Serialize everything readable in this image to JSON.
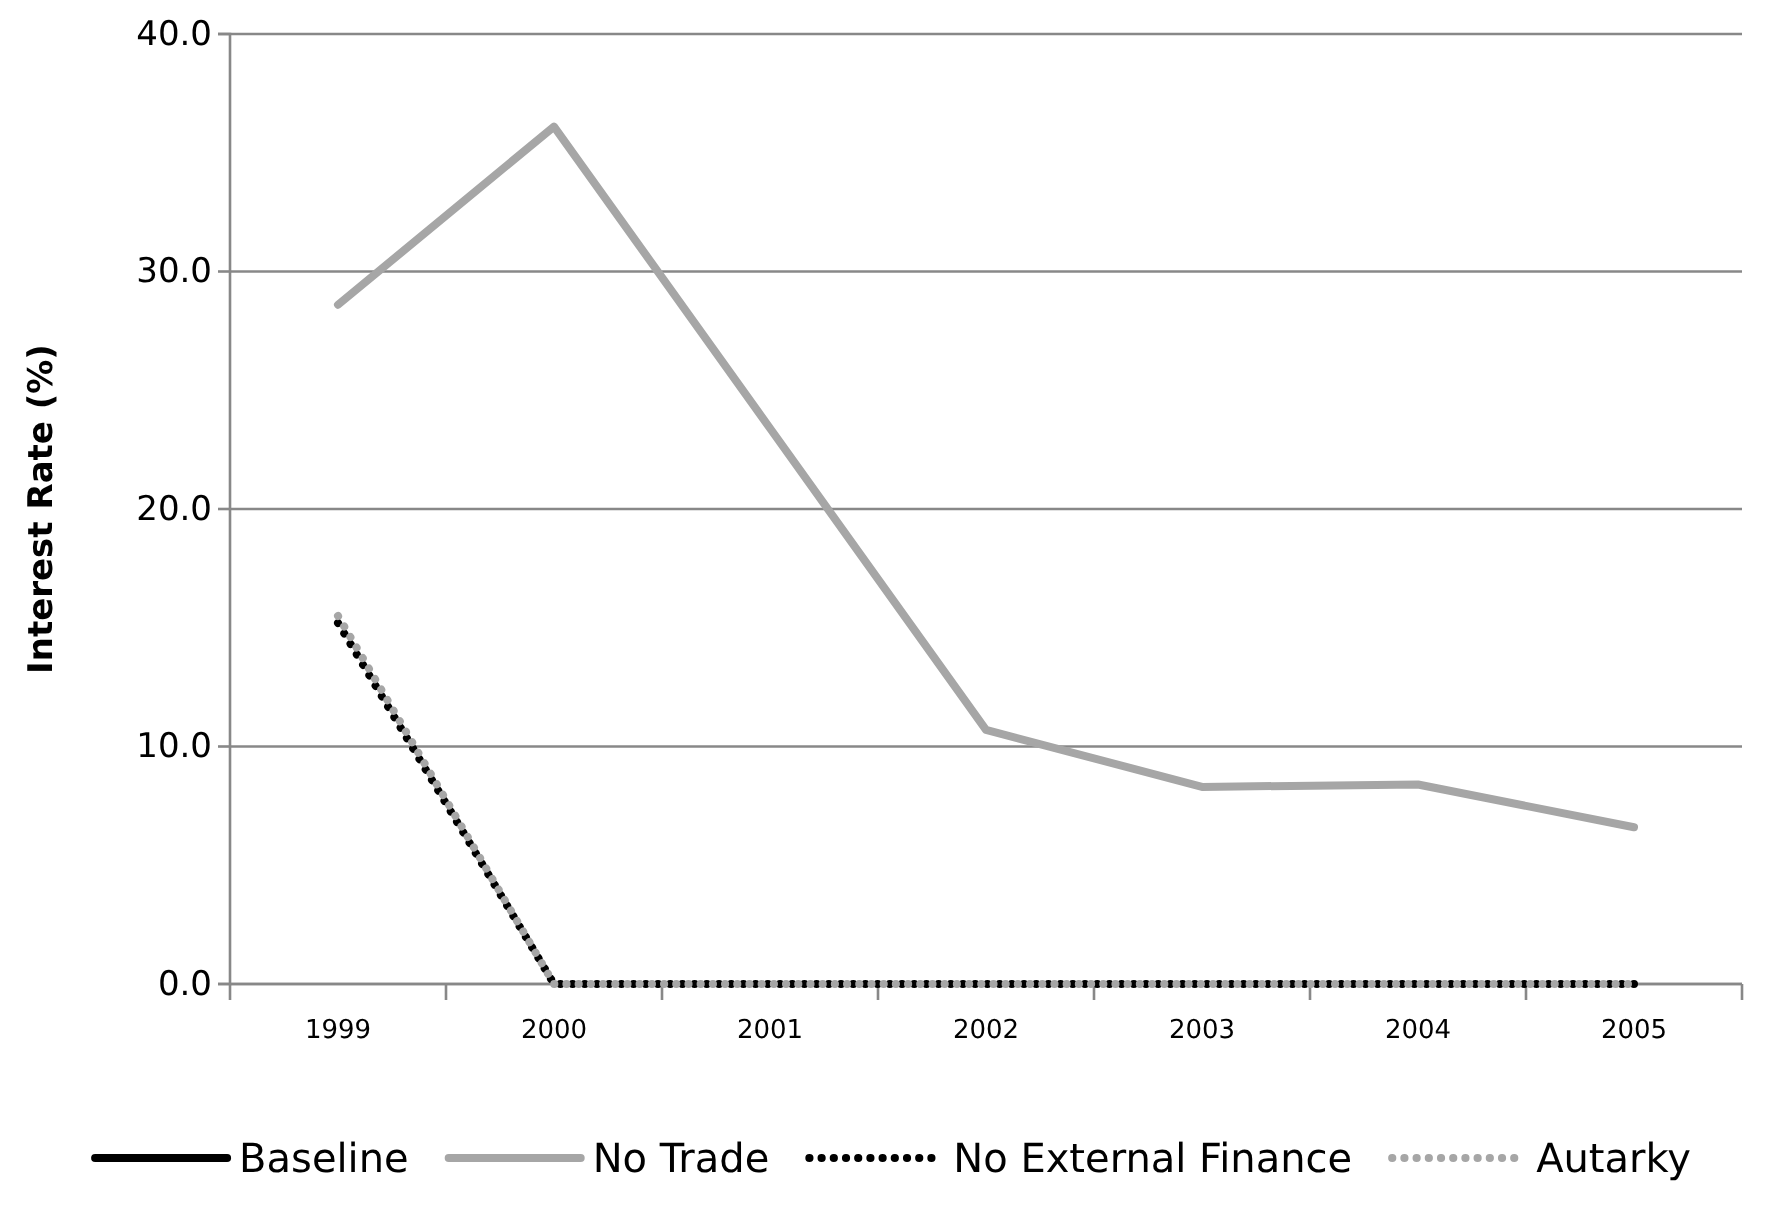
{
  "chart_data": {
    "type": "line",
    "ylabel": "Interest Rate (%)",
    "categories": [
      "1999",
      "2000",
      "2001",
      "2002",
      "2003",
      "2004",
      "2005"
    ],
    "series": [
      {
        "name": "Baseline",
        "color": "#000000",
        "values": [
          null,
          null,
          null,
          null,
          null,
          null,
          null
        ]
      },
      {
        "name": "No Trade",
        "color": "#a6a6a6",
        "values": [
          28.6,
          36.1,
          23.4,
          10.7,
          8.3,
          8.4,
          6.6
        ]
      },
      {
        "name": "No External Finance",
        "color": "#000000",
        "line_style": "dotted",
        "values": [
          15.2,
          0,
          0,
          0,
          0,
          0,
          0
        ]
      },
      {
        "name": "Autarky",
        "color": "#a6a6a6",
        "line_style": "dotted",
        "values": [
          15.5,
          0,
          0,
          0,
          0,
          0,
          0
        ]
      }
    ],
    "ylim": [
      0,
      40
    ],
    "yticks": [
      {
        "value": 0,
        "label": "0.0"
      },
      {
        "value": 10,
        "label": "10.0"
      },
      {
        "value": 20,
        "label": "20.0"
      },
      {
        "value": 30,
        "label": "30.0"
      },
      {
        "value": 40,
        "label": "40.0"
      }
    ],
    "grid": "y",
    "legend": "bottom",
    "line_style": "solid"
  }
}
